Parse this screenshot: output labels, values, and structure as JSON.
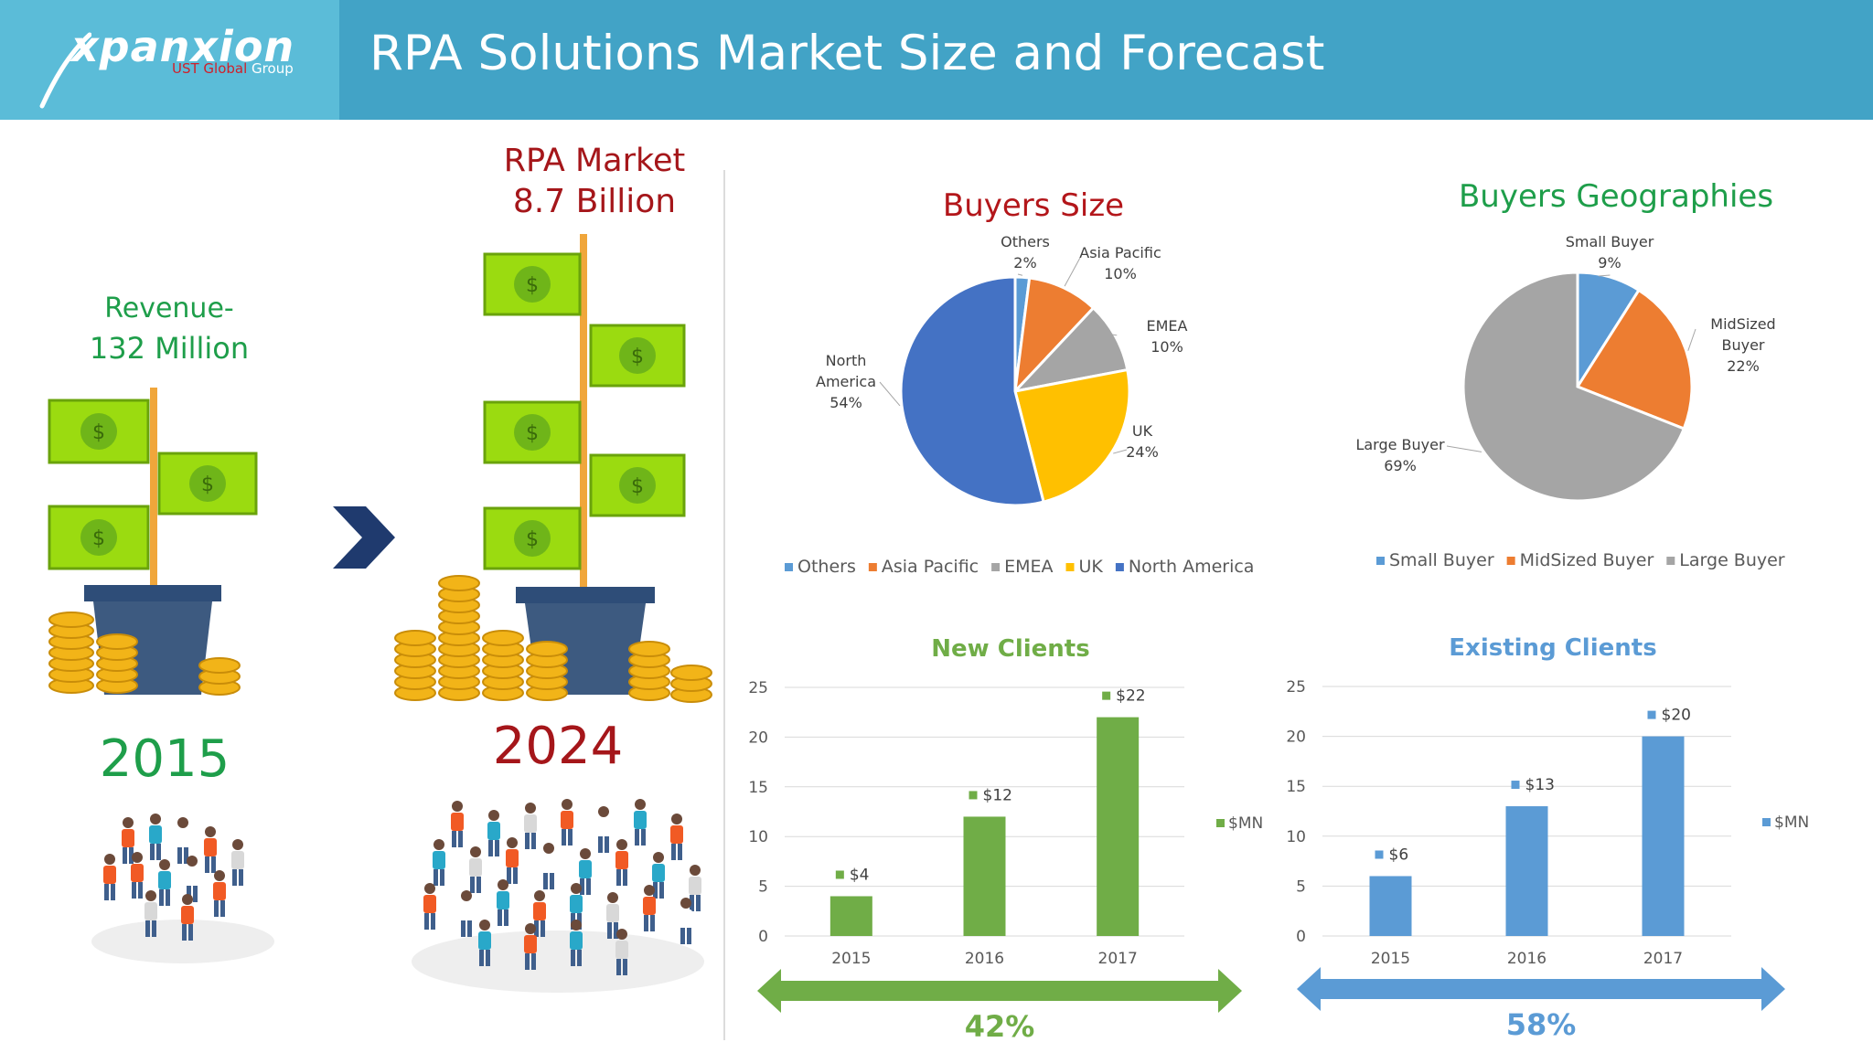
{
  "header": {
    "logo": "xpanxion",
    "logo_sub_red": "UST Global",
    "logo_sub_rest": " Group",
    "title": "RPA Solutions Market Size and Forecast"
  },
  "left": {
    "revenue_label": "Revenue-",
    "revenue_value": "132 Million",
    "year_2015": "2015",
    "market_label": "RPA Market",
    "market_value": "8.7 Billion",
    "year_2024": "2024"
  },
  "colors": {
    "green": "#70ad47",
    "blue": "#5b9bd5",
    "orange": "#ed7d31",
    "gray": "#a5a5a5",
    "yellow": "#ffc000",
    "darkblue": "#4472c4",
    "red": "#a5161a",
    "teal_green": "#1e9e4a"
  },
  "chart_data": [
    {
      "type": "pie",
      "title": "Buyers Size",
      "categories": [
        "Others",
        "Asia Pacific",
        "EMEA",
        "UK",
        "North America"
      ],
      "values": [
        2,
        10,
        10,
        24,
        54
      ],
      "labels": [
        "2%",
        "10%",
        "10%",
        "24%",
        "54%"
      ],
      "colors": [
        "#5b9bd5",
        "#ed7d31",
        "#a5a5a5",
        "#ffc000",
        "#4472c4"
      ],
      "legend": "bottom"
    },
    {
      "type": "pie",
      "title": "Buyers Geographies",
      "categories": [
        "Small Buyer",
        "MidSized Buyer",
        "Large Buyer"
      ],
      "values": [
        9,
        22,
        69
      ],
      "labels": [
        "9%",
        "22%",
        "69%"
      ],
      "colors": [
        "#5b9bd5",
        "#ed7d31",
        "#a5a5a5"
      ],
      "legend": "bottom"
    },
    {
      "type": "bar",
      "title": "New Clients",
      "categories": [
        "2015",
        "2016",
        "2017"
      ],
      "series": [
        {
          "name": "$MN",
          "values": [
            4,
            12,
            22
          ]
        }
      ],
      "data_labels": [
        "$4",
        "$12",
        "$22"
      ],
      "ylim": [
        0,
        25
      ],
      "yticks": [
        0,
        5,
        10,
        15,
        20,
        25
      ],
      "legend": "right",
      "growth": "42%"
    },
    {
      "type": "bar",
      "title": "Existing Clients",
      "categories": [
        "2015",
        "2016",
        "2017"
      ],
      "series": [
        {
          "name": "$MN",
          "values": [
            6,
            13,
            20
          ]
        }
      ],
      "data_labels": [
        "$6",
        "$13",
        "$20"
      ],
      "ylim": [
        0,
        25
      ],
      "yticks": [
        0,
        5,
        10,
        15,
        20,
        25
      ],
      "legend": "right",
      "growth": "58%"
    }
  ]
}
